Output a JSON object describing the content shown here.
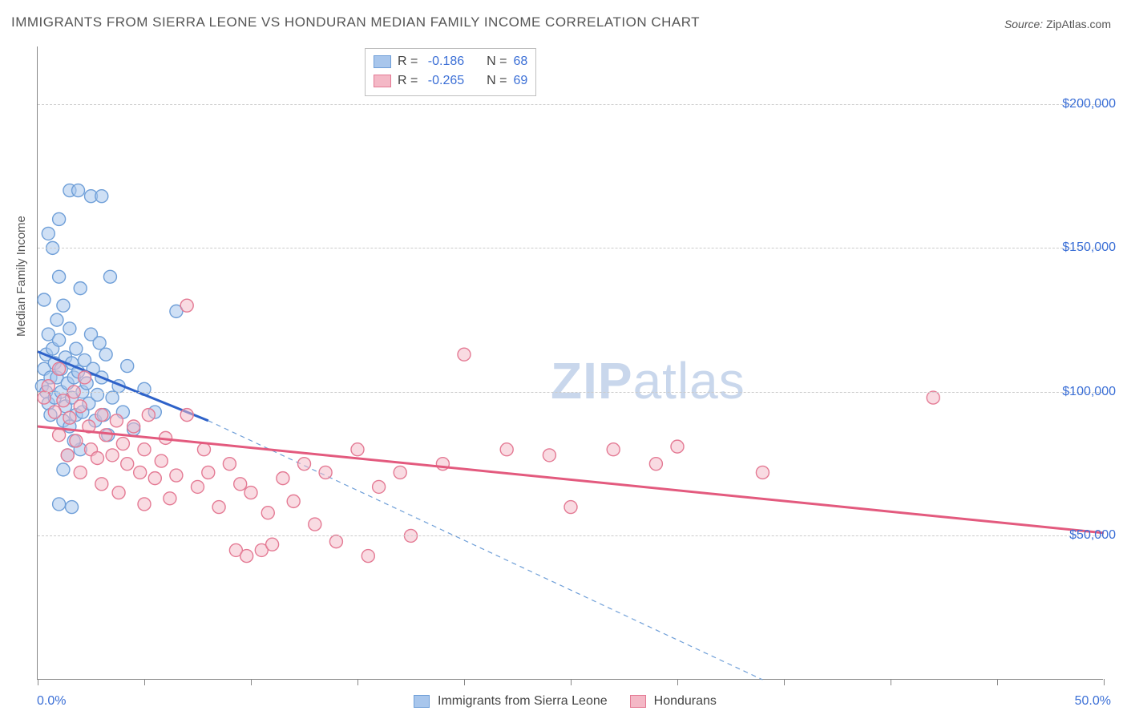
{
  "title": "IMMIGRANTS FROM SIERRA LEONE VS HONDURAN MEDIAN FAMILY INCOME CORRELATION CHART",
  "source_label": "Source:",
  "source_value": "ZipAtlas.com",
  "watermark_bold": "ZIP",
  "watermark_rest": "atlas",
  "chart": {
    "type": "scatter",
    "background_color": "#ffffff",
    "grid_color": "#cccccc",
    "axis_color": "#888888",
    "text_color": "#555555",
    "value_color": "#3b6fd6",
    "ylabel": "Median Family Income",
    "xlim": [
      0,
      50
    ],
    "ylim": [
      0,
      220000
    ],
    "xtick_labels": [
      {
        "x": 0,
        "label": "0.0%"
      },
      {
        "x": 50,
        "label": "50.0%"
      }
    ],
    "xtick_positions": [
      0,
      5,
      10,
      15,
      20,
      25,
      30,
      35,
      40,
      45,
      50
    ],
    "ytick_labels": [
      {
        "y": 50000,
        "label": "$50,000"
      },
      {
        "y": 100000,
        "label": "$100,000"
      },
      {
        "y": 150000,
        "label": "$150,000"
      },
      {
        "y": 200000,
        "label": "$200,000"
      }
    ],
    "series": [
      {
        "id": "sierra_leone",
        "label": "Immigrants from Sierra Leone",
        "fill": "#a8c6ec",
        "stroke": "#6f9fd8",
        "fill_opacity": 0.55,
        "marker_r": 8,
        "R": "-0.186",
        "N": "68",
        "trend": {
          "x1": 0,
          "y1": 114000,
          "x2": 8,
          "y2": 90000,
          "stroke": "#2e62c9",
          "width": 3
        },
        "trend_ext": {
          "x1": 8,
          "y1": 90000,
          "x2": 34,
          "y2": 0,
          "stroke": "#6f9fd8",
          "width": 1.2,
          "dash": "6 5"
        },
        "points": [
          [
            0.2,
            102000
          ],
          [
            0.3,
            108000
          ],
          [
            0.4,
            100000
          ],
          [
            0.4,
            113000
          ],
          [
            0.5,
            96000
          ],
          [
            0.5,
            120000
          ],
          [
            0.5,
            155000
          ],
          [
            0.6,
            105000
          ],
          [
            0.6,
            92000
          ],
          [
            0.7,
            150000
          ],
          [
            0.7,
            115000
          ],
          [
            0.8,
            110000
          ],
          [
            0.8,
            98000
          ],
          [
            0.9,
            125000
          ],
          [
            0.9,
            105000
          ],
          [
            1.0,
            160000
          ],
          [
            1.0,
            140000
          ],
          [
            1.0,
            118000
          ],
          [
            1.1,
            108000
          ],
          [
            1.1,
            100000
          ],
          [
            1.2,
            130000
          ],
          [
            1.2,
            90000
          ],
          [
            1.3,
            112000
          ],
          [
            1.3,
            95000
          ],
          [
            1.4,
            103000
          ],
          [
            1.5,
            170000
          ],
          [
            1.5,
            122000
          ],
          [
            1.5,
            88000
          ],
          [
            1.6,
            110000
          ],
          [
            1.6,
            98000
          ],
          [
            1.7,
            105000
          ],
          [
            1.8,
            115000
          ],
          [
            1.8,
            92000
          ],
          [
            1.9,
            170000
          ],
          [
            1.9,
            107000
          ],
          [
            2.0,
            136000
          ],
          [
            2.0,
            80000
          ],
          [
            2.1,
            100000
          ],
          [
            2.1,
            93000
          ],
          [
            2.2,
            111000
          ],
          [
            2.3,
            103000
          ],
          [
            2.4,
            96000
          ],
          [
            2.5,
            168000
          ],
          [
            2.5,
            120000
          ],
          [
            2.6,
            108000
          ],
          [
            2.7,
            90000
          ],
          [
            2.8,
            99000
          ],
          [
            2.9,
            117000
          ],
          [
            3.0,
            168000
          ],
          [
            3.0,
            105000
          ],
          [
            3.1,
            92000
          ],
          [
            3.2,
            113000
          ],
          [
            3.3,
            85000
          ],
          [
            3.4,
            140000
          ],
          [
            3.5,
            98000
          ],
          [
            3.8,
            102000
          ],
          [
            4.0,
            93000
          ],
          [
            4.2,
            109000
          ],
          [
            4.5,
            87000
          ],
          [
            5.0,
            101000
          ],
          [
            5.5,
            93000
          ],
          [
            1.4,
            78000
          ],
          [
            1.6,
            60000
          ],
          [
            1.7,
            83000
          ],
          [
            1.0,
            61000
          ],
          [
            1.2,
            73000
          ],
          [
            6.5,
            128000
          ],
          [
            0.3,
            132000
          ]
        ]
      },
      {
        "id": "hondurans",
        "label": "Hondurans",
        "fill": "#f4b8c6",
        "stroke": "#e47a94",
        "fill_opacity": 0.5,
        "marker_r": 8,
        "R": "-0.265",
        "N": "69",
        "trend": {
          "x1": 0,
          "y1": 88000,
          "x2": 50,
          "y2": 51000,
          "stroke": "#e35a7e",
          "width": 3
        },
        "points": [
          [
            0.3,
            98000
          ],
          [
            0.5,
            102000
          ],
          [
            0.8,
            93000
          ],
          [
            1.0,
            108000
          ],
          [
            1.0,
            85000
          ],
          [
            1.2,
            97000
          ],
          [
            1.4,
            78000
          ],
          [
            1.5,
            91000
          ],
          [
            1.7,
            100000
          ],
          [
            1.8,
            83000
          ],
          [
            2.0,
            95000
          ],
          [
            2.0,
            72000
          ],
          [
            2.2,
            105000
          ],
          [
            2.4,
            88000
          ],
          [
            2.5,
            80000
          ],
          [
            2.8,
            77000
          ],
          [
            3.0,
            92000
          ],
          [
            3.0,
            68000
          ],
          [
            3.2,
            85000
          ],
          [
            3.5,
            78000
          ],
          [
            3.7,
            90000
          ],
          [
            3.8,
            65000
          ],
          [
            4.0,
            82000
          ],
          [
            4.2,
            75000
          ],
          [
            4.5,
            88000
          ],
          [
            4.8,
            72000
          ],
          [
            5.0,
            80000
          ],
          [
            5.0,
            61000
          ],
          [
            5.2,
            92000
          ],
          [
            5.5,
            70000
          ],
          [
            5.8,
            76000
          ],
          [
            6.0,
            84000
          ],
          [
            6.2,
            63000
          ],
          [
            6.5,
            71000
          ],
          [
            7.0,
            92000
          ],
          [
            7.0,
            130000
          ],
          [
            7.5,
            67000
          ],
          [
            7.8,
            80000
          ],
          [
            8.0,
            72000
          ],
          [
            8.5,
            60000
          ],
          [
            9.0,
            75000
          ],
          [
            9.3,
            45000
          ],
          [
            9.5,
            68000
          ],
          [
            9.8,
            43000
          ],
          [
            10.0,
            65000
          ],
          [
            10.5,
            45000
          ],
          [
            10.8,
            58000
          ],
          [
            11.0,
            47000
          ],
          [
            11.5,
            70000
          ],
          [
            12.0,
            62000
          ],
          [
            12.5,
            75000
          ],
          [
            13.0,
            54000
          ],
          [
            13.5,
            72000
          ],
          [
            14.0,
            48000
          ],
          [
            15.0,
            80000
          ],
          [
            16.0,
            67000
          ],
          [
            17.0,
            72000
          ],
          [
            17.5,
            50000
          ],
          [
            19.0,
            75000
          ],
          [
            20.0,
            113000
          ],
          [
            22.0,
            80000
          ],
          [
            24.0,
            78000
          ],
          [
            25.0,
            60000
          ],
          [
            27.0,
            80000
          ],
          [
            29.0,
            75000
          ],
          [
            30.0,
            81000
          ],
          [
            34.0,
            72000
          ],
          [
            42.0,
            98000
          ],
          [
            15.5,
            43000
          ]
        ]
      }
    ],
    "stat_legend_labels": {
      "R": "R =",
      "N": "N ="
    },
    "label_fontsize": 15,
    "tick_fontsize": 16,
    "title_fontsize": 17
  }
}
